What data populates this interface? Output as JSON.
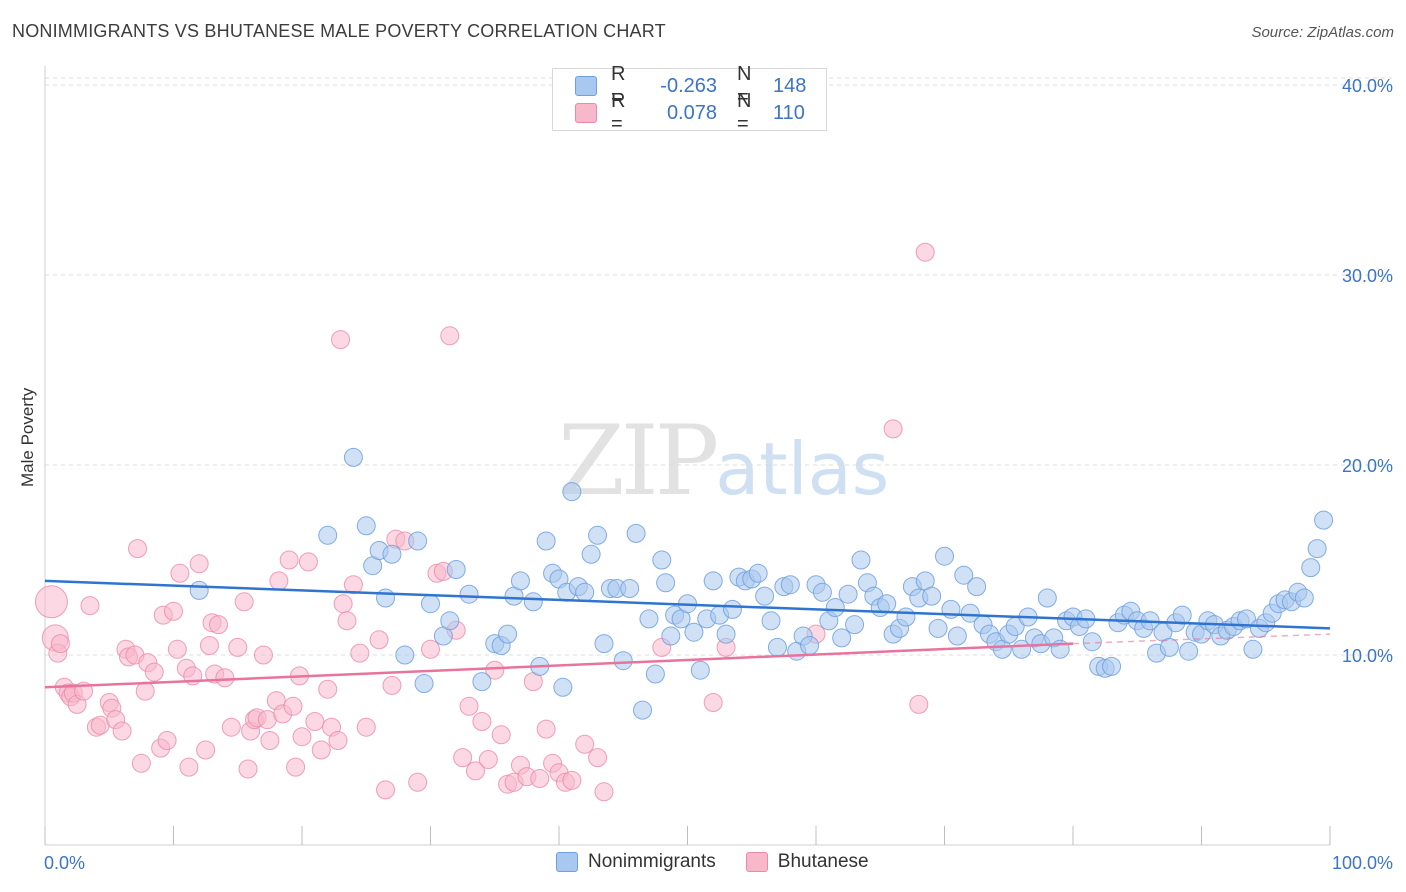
{
  "header": {
    "title": "NONIMMIGRANTS VS BHUTANESE MALE POVERTY CORRELATION CHART",
    "source": "Source: ZipAtlas.com"
  },
  "watermark": {
    "zip": "ZIP",
    "atlas": "atlas"
  },
  "legend_top": {
    "rows": [
      {
        "r_label": "R =",
        "r_value": "-0.263",
        "n_label": "N =",
        "n_value": "148",
        "color": "#a9c8ef"
      },
      {
        "r_label": "R =",
        "r_value": "0.078",
        "n_label": "N =",
        "n_value": "110",
        "color": "#f7b8cc"
      }
    ]
  },
  "legend_bottom": {
    "items": [
      {
        "label": "Nonimmigrants",
        "color": "#a9c8ef"
      },
      {
        "label": "Bhutanese",
        "color": "#f7b8cc"
      }
    ]
  },
  "colors": {
    "blue_fill": "#a9c8ef",
    "blue_stroke": "#6fa0de",
    "blue_line": "#2e74d0",
    "pink_fill": "#f7b8cc",
    "pink_stroke": "#eb8aa8",
    "pink_line": "#e8739c",
    "grid": "#dcdcdc",
    "axis_text": "#3b74c8"
  },
  "chart_data": {
    "type": "scatter",
    "ylabel": "Male Poverty",
    "xlabel": "",
    "x_tick_labels": [
      "0.0%",
      "100.0%"
    ],
    "y_tick_labels": [
      "10.0%",
      "20.0%",
      "30.0%",
      "40.0%"
    ],
    "y_ticks": [
      10,
      20,
      30,
      40
    ],
    "xlim": [
      0,
      100
    ],
    "ylim": [
      0,
      42
    ],
    "grid": true,
    "series": [
      {
        "name": "Nonimmigrants",
        "r": -0.263,
        "n": 148,
        "trend": {
          "x": [
            0,
            100
          ],
          "y": [
            13.9,
            11.4
          ]
        },
        "points": [
          [
            12,
            13.4
          ],
          [
            22,
            16.3
          ],
          [
            24,
            20.4
          ],
          [
            25,
            16.8
          ],
          [
            25.5,
            14.7
          ],
          [
            26,
            15.5
          ],
          [
            26.5,
            13
          ],
          [
            27,
            15.3
          ],
          [
            28,
            10
          ],
          [
            29,
            16
          ],
          [
            29.5,
            8.5
          ],
          [
            30,
            12.7
          ],
          [
            31,
            11
          ],
          [
            31.5,
            11.8
          ],
          [
            32,
            14.5
          ],
          [
            33,
            13.2
          ],
          [
            34,
            8.6
          ],
          [
            35,
            10.6
          ],
          [
            35.5,
            10.5
          ],
          [
            36,
            11.1
          ],
          [
            36.5,
            13.1
          ],
          [
            37,
            13.9
          ],
          [
            38,
            12.8
          ],
          [
            38.5,
            9.4
          ],
          [
            39,
            16
          ],
          [
            39.5,
            14.3
          ],
          [
            40,
            14
          ],
          [
            40.3,
            8.3
          ],
          [
            40.6,
            13.3
          ],
          [
            41,
            18.6
          ],
          [
            41.5,
            13.6
          ],
          [
            42,
            13.3
          ],
          [
            42.5,
            15.3
          ],
          [
            43,
            16.3
          ],
          [
            43.5,
            10.6
          ],
          [
            44,
            13.5
          ],
          [
            44.5,
            13.5
          ],
          [
            45,
            9.7
          ],
          [
            45.5,
            13.5
          ],
          [
            46,
            16.4
          ],
          [
            46.5,
            7.1
          ],
          [
            47,
            11.9
          ],
          [
            47.5,
            9
          ],
          [
            48,
            15
          ],
          [
            48.3,
            13.8
          ],
          [
            48.7,
            11
          ],
          [
            49,
            12.1
          ],
          [
            49.5,
            11.9
          ],
          [
            50,
            12.7
          ],
          [
            50.5,
            11.2
          ],
          [
            51,
            9.2
          ],
          [
            51.5,
            11.9
          ],
          [
            52,
            13.9
          ],
          [
            52.5,
            12.1
          ],
          [
            53,
            11.1
          ],
          [
            53.5,
            12.4
          ],
          [
            54,
            14.1
          ],
          [
            54.5,
            13.9
          ],
          [
            55,
            14
          ],
          [
            55.5,
            14.3
          ],
          [
            56,
            13.1
          ],
          [
            56.5,
            11.8
          ],
          [
            57,
            10.4
          ],
          [
            57.5,
            13.6
          ],
          [
            58,
            13.7
          ],
          [
            58.5,
            10.2
          ],
          [
            59,
            11
          ],
          [
            59.5,
            10.5
          ],
          [
            60,
            13.7
          ],
          [
            60.5,
            13.3
          ],
          [
            61,
            11.8
          ],
          [
            61.5,
            12.5
          ],
          [
            62,
            10.9
          ],
          [
            62.5,
            13.2
          ],
          [
            63,
            11.6
          ],
          [
            63.5,
            15
          ],
          [
            64,
            13.8
          ],
          [
            64.5,
            13.1
          ],
          [
            65,
            12.5
          ],
          [
            65.5,
            12.7
          ],
          [
            66,
            11.1
          ],
          [
            66.5,
            11.4
          ],
          [
            67,
            12
          ],
          [
            67.5,
            13.6
          ],
          [
            68,
            13
          ],
          [
            68.5,
            13.9
          ],
          [
            69,
            13.1
          ],
          [
            69.5,
            11.4
          ],
          [
            70,
            15.2
          ],
          [
            70.5,
            12.4
          ],
          [
            71,
            11
          ],
          [
            71.5,
            14.2
          ],
          [
            72,
            12.2
          ],
          [
            72.5,
            13.6
          ],
          [
            73,
            11.6
          ],
          [
            73.5,
            11.1
          ],
          [
            74,
            10.7
          ],
          [
            74.5,
            10.3
          ],
          [
            75,
            11.1
          ],
          [
            75.5,
            11.5
          ],
          [
            76,
            10.3
          ],
          [
            76.5,
            12
          ],
          [
            77,
            10.9
          ],
          [
            77.5,
            10.6
          ],
          [
            78,
            13
          ],
          [
            78.5,
            10.9
          ],
          [
            79,
            10.3
          ],
          [
            79.5,
            11.8
          ],
          [
            80,
            12
          ],
          [
            80.5,
            11.5
          ],
          [
            81,
            11.9
          ],
          [
            81.5,
            10.7
          ],
          [
            82,
            9.4
          ],
          [
            82.5,
            9.3
          ],
          [
            83,
            9.4
          ],
          [
            83.5,
            11.7
          ],
          [
            84,
            12.1
          ],
          [
            84.5,
            12.3
          ],
          [
            85,
            11.8
          ],
          [
            85.5,
            11.4
          ],
          [
            86,
            11.8
          ],
          [
            86.5,
            10.1
          ],
          [
            87,
            11.2
          ],
          [
            87.5,
            10.4
          ],
          [
            88,
            11.7
          ],
          [
            88.5,
            12.1
          ],
          [
            89,
            10.2
          ],
          [
            89.5,
            11.2
          ],
          [
            90,
            11.1
          ],
          [
            90.5,
            11.8
          ],
          [
            91,
            11.6
          ],
          [
            91.5,
            11
          ],
          [
            92,
            11.3
          ],
          [
            92.5,
            11.5
          ],
          [
            93,
            11.8
          ],
          [
            93.5,
            11.9
          ],
          [
            94,
            10.3
          ],
          [
            94.5,
            11.4
          ],
          [
            95,
            11.7
          ],
          [
            95.5,
            12.2
          ],
          [
            96,
            12.7
          ],
          [
            96.5,
            12.9
          ],
          [
            97,
            12.8
          ],
          [
            97.5,
            13.3
          ],
          [
            98,
            13
          ],
          [
            98.5,
            14.6
          ],
          [
            99,
            15.6
          ],
          [
            99.5,
            17.1
          ]
        ]
      },
      {
        "name": "Bhutanese",
        "r": 0.078,
        "n": 110,
        "trend": {
          "x": [
            0,
            80
          ],
          "y": [
            8.3,
            10.6
          ]
        },
        "trend_ext": {
          "x": [
            80,
            100
          ],
          "y": [
            10.6,
            11.1
          ]
        },
        "points": [
          [
            0.5,
            12.8
          ],
          [
            0.8,
            10.9
          ],
          [
            1,
            10.1
          ],
          [
            1.2,
            10.6
          ],
          [
            1.5,
            8.3
          ],
          [
            1.8,
            8
          ],
          [
            2,
            7.8
          ],
          [
            2.2,
            8
          ],
          [
            2.5,
            7.4
          ],
          [
            3,
            8.1
          ],
          [
            3.5,
            12.6
          ],
          [
            4,
            6.2
          ],
          [
            4.3,
            6.3
          ],
          [
            5,
            7.5
          ],
          [
            5.2,
            7.2
          ],
          [
            5.5,
            6.6
          ],
          [
            6,
            6
          ],
          [
            6.3,
            10.3
          ],
          [
            6.5,
            9.9
          ],
          [
            7,
            10
          ],
          [
            7.2,
            15.6
          ],
          [
            7.5,
            4.3
          ],
          [
            7.8,
            8.1
          ],
          [
            8,
            9.6
          ],
          [
            8.5,
            9.1
          ],
          [
            9,
            5.1
          ],
          [
            9.2,
            12.1
          ],
          [
            9.5,
            5.5
          ],
          [
            10,
            12.3
          ],
          [
            10.3,
            10.3
          ],
          [
            10.5,
            14.3
          ],
          [
            11,
            9.3
          ],
          [
            11.2,
            4.1
          ],
          [
            11.5,
            8.9
          ],
          [
            12,
            14.8
          ],
          [
            12.5,
            5
          ],
          [
            12.8,
            10.5
          ],
          [
            13,
            11.7
          ],
          [
            13.2,
            9
          ],
          [
            13.5,
            11.6
          ],
          [
            14,
            8.8
          ],
          [
            14.5,
            6.2
          ],
          [
            15,
            10.4
          ],
          [
            15.5,
            12.8
          ],
          [
            15.8,
            4
          ],
          [
            16,
            6
          ],
          [
            16.3,
            6.6
          ],
          [
            16.5,
            6.7
          ],
          [
            17,
            10
          ],
          [
            17.3,
            6.6
          ],
          [
            17.5,
            5.5
          ],
          [
            18,
            7.6
          ],
          [
            18.2,
            13.9
          ],
          [
            18.5,
            6.9
          ],
          [
            19,
            15
          ],
          [
            19.3,
            7.3
          ],
          [
            19.5,
            4.1
          ],
          [
            19.8,
            8.9
          ],
          [
            20,
            5.7
          ],
          [
            20.5,
            14.9
          ],
          [
            21,
            6.5
          ],
          [
            21.5,
            5
          ],
          [
            22,
            8.2
          ],
          [
            22.3,
            6.2
          ],
          [
            22.8,
            5.5
          ],
          [
            23,
            26.6
          ],
          [
            23.2,
            12.7
          ],
          [
            23.5,
            11.8
          ],
          [
            24,
            13.7
          ],
          [
            24.5,
            10.1
          ],
          [
            25,
            6.2
          ],
          [
            26,
            10.8
          ],
          [
            26.5,
            2.9
          ],
          [
            27,
            8.4
          ],
          [
            27.3,
            16.1
          ],
          [
            28,
            16
          ],
          [
            29,
            3.3
          ],
          [
            30,
            10.3
          ],
          [
            30.5,
            14.3
          ],
          [
            31,
            14.4
          ],
          [
            31.5,
            26.8
          ],
          [
            32,
            11.3
          ],
          [
            32.5,
            4.6
          ],
          [
            33,
            7.3
          ],
          [
            33.5,
            3.9
          ],
          [
            34,
            6.5
          ],
          [
            34.5,
            4.5
          ],
          [
            35,
            9.2
          ],
          [
            35.5,
            5.8
          ],
          [
            36,
            3.2
          ],
          [
            36.5,
            3.3
          ],
          [
            37,
            4.2
          ],
          [
            37.5,
            3.6
          ],
          [
            38,
            8.6
          ],
          [
            38.5,
            3.5
          ],
          [
            39,
            6.1
          ],
          [
            39.5,
            4.3
          ],
          [
            40,
            3.8
          ],
          [
            40.5,
            3.3
          ],
          [
            41,
            3.4
          ],
          [
            42,
            5.3
          ],
          [
            43,
            4.6
          ],
          [
            43.5,
            2.8
          ],
          [
            48,
            10.4
          ],
          [
            52,
            7.5
          ],
          [
            53,
            10.4
          ],
          [
            60,
            11.1
          ],
          [
            66,
            21.9
          ],
          [
            68,
            7.4
          ],
          [
            68.5,
            31.2
          ]
        ]
      }
    ]
  }
}
